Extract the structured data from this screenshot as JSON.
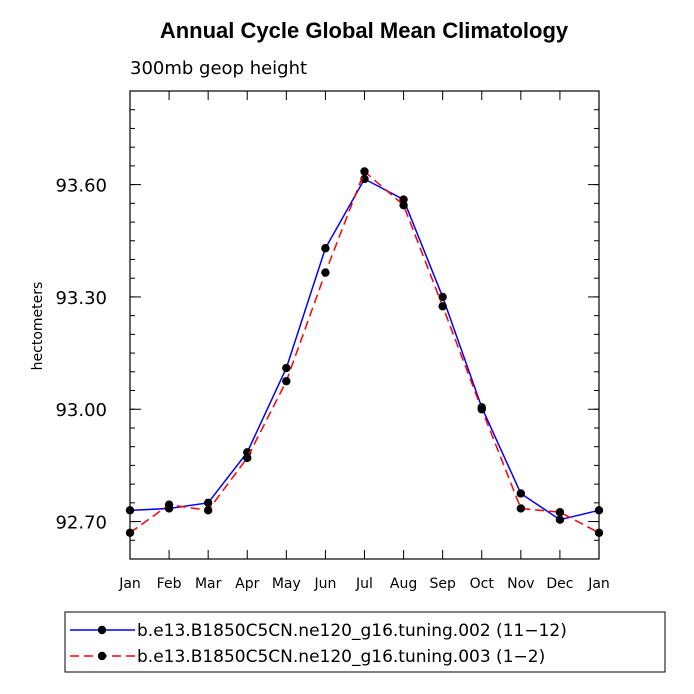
{
  "chart_data": {
    "type": "line",
    "title": "Annual Cycle Global Mean Climatology",
    "subtitle": "300mb geop height",
    "xlabel": "",
    "ylabel": "hectometers",
    "categories": [
      "Jan",
      "Feb",
      "Mar",
      "Apr",
      "May",
      "Jun",
      "Jul",
      "Aug",
      "Sep",
      "Oct",
      "Nov",
      "Dec",
      "Jan"
    ],
    "ylim": [
      92.6,
      93.85
    ],
    "yticks": [
      92.7,
      93.0,
      93.3,
      93.6
    ],
    "ytick_labels": [
      "92.70",
      "93.00",
      "93.30",
      "93.60"
    ],
    "series": [
      {
        "name": "b.e13.B1850C5CN.ne120_g16.tuning.002 (11−12)",
        "color": "#0000ff",
        "dash": "solid",
        "values": [
          92.73,
          92.735,
          92.75,
          92.885,
          93.11,
          93.43,
          93.615,
          93.56,
          93.3,
          93.005,
          92.775,
          92.705,
          92.73
        ]
      },
      {
        "name": "b.e13.B1850C5CN.ne120_g16.tuning.003 (1−2)",
        "color": "#ff0000",
        "dash": "dashed",
        "values": [
          92.67,
          92.745,
          92.73,
          92.87,
          93.075,
          93.365,
          93.635,
          93.545,
          93.275,
          93.0,
          92.735,
          92.725,
          92.67
        ]
      }
    ],
    "legend_position": "bottom"
  }
}
